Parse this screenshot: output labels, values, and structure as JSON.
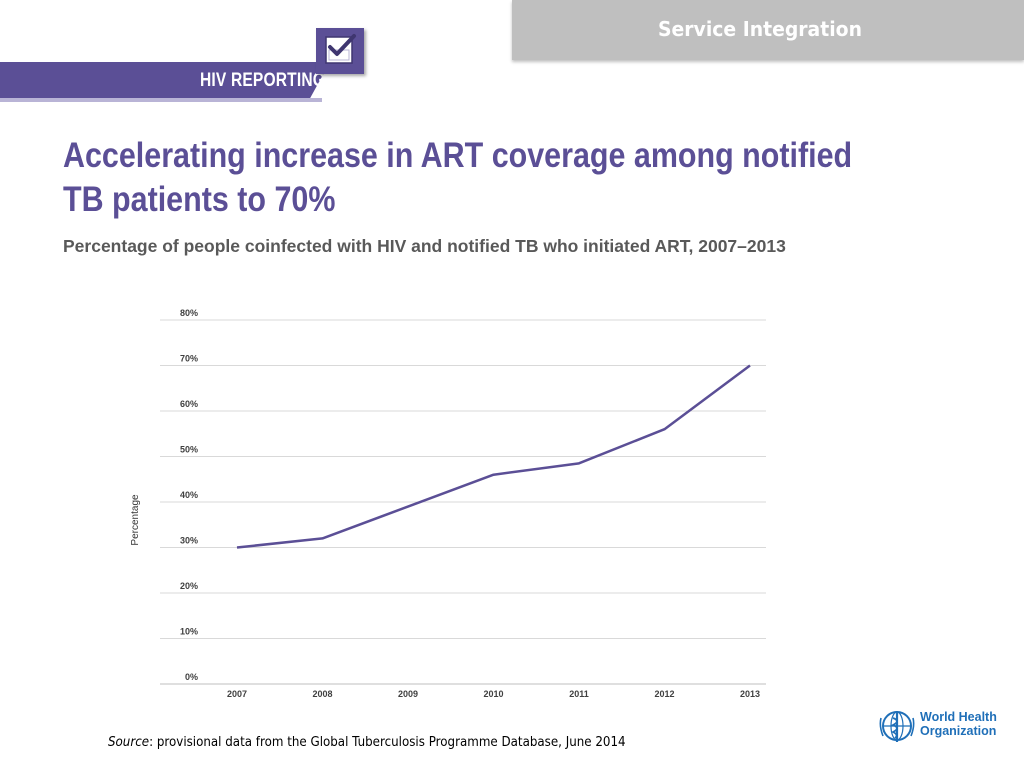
{
  "header": {
    "section_label": "Service Integration",
    "program_label": "HIV REPORTING",
    "logo_icon": "checkbox-icon"
  },
  "slide": {
    "title": "Accelerating increase in ART coverage among notified TB patients to 70%",
    "subtitle": "Percentage of people coinfected with HIV and notified TB who initiated ART, 2007–2013"
  },
  "chart_data": {
    "type": "line",
    "x": [
      "2007",
      "2008",
      "2009",
      "2010",
      "2011",
      "2012",
      "2013"
    ],
    "series": [
      {
        "values": [
          30,
          32,
          39,
          46,
          48.5,
          56,
          70
        ],
        "color": "#5b4f96"
      }
    ],
    "ylabel": "Percentage",
    "xlabel": "",
    "ylim": [
      0,
      80
    ],
    "yticks": [
      "0%",
      "10%",
      "20%",
      "30%",
      "40%",
      "50%",
      "60%",
      "70%",
      "80%"
    ],
    "grid": true
  },
  "footer": {
    "source_label": "Source",
    "source_text": ": provisional data from the Global Tuberculosis Programme Database, June 2014",
    "org_name_line1": "World Health",
    "org_name_line2": "Organization",
    "org_icon": "who-emblem-icon"
  }
}
